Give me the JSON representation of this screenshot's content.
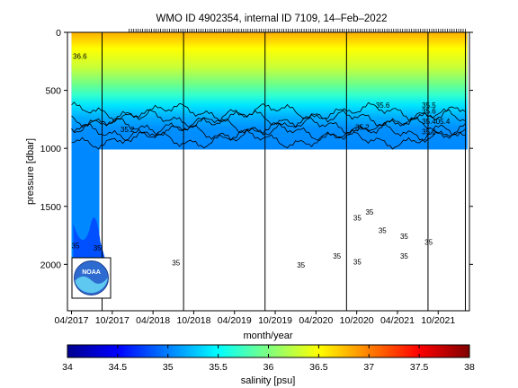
{
  "chart_data": {
    "type": "heatmap",
    "title": "WMO ID 4902354, internal ID 7109, 14–Feb–2022",
    "xlabel": "month/year",
    "ylabel": "pressure [dbar]",
    "x_tick_labels": [
      "04/2017",
      "10/2017",
      "04/2018",
      "10/2018",
      "04/2019",
      "10/2019",
      "04/2020",
      "10/2020",
      "04/2021",
      "10/2021"
    ],
    "x_ticks_months": [
      0,
      6,
      12,
      18,
      24,
      30,
      36,
      42,
      48,
      54
    ],
    "xlim_months": [
      -0.6,
      58.6
    ],
    "ylim": [
      2400,
      0
    ],
    "y_ticks": [
      0,
      500,
      1000,
      1500,
      2000
    ],
    "y_reversed": true,
    "colorbar": {
      "label": "salinity [psu]",
      "range": [
        34,
        38
      ],
      "ticks": [
        "34",
        "34.5",
        "35",
        "35.5",
        "36",
        "36.5",
        "37",
        "37.5",
        "38"
      ],
      "colormap": "jet"
    },
    "profile_max_depth_dbar": {
      "deep_early": {
        "from_month": 0,
        "to_month": 4.1,
        "depth": 2030
      },
      "shallow_after": 1010
    },
    "cycle_breaks_months": [
      4.5,
      16.5,
      28.5,
      40.5,
      52.5,
      58.0
    ],
    "isolines": [
      {
        "value": "35.6",
        "depth_dbar": 690
      },
      {
        "value": "35.5",
        "depth_dbar": 740
      },
      {
        "value": "35.4",
        "depth_dbar": 810
      },
      {
        "value": "35.3",
        "depth_dbar": 860
      },
      {
        "value": "35.2",
        "depth_dbar": 920
      }
    ],
    "contour_labels": [
      {
        "text": "36.6",
        "month": 0.2,
        "depth": 230
      },
      {
        "text": "35.2",
        "month": 7.2,
        "depth": 860
      },
      {
        "text": "35.6",
        "month": 44.8,
        "depth": 650
      },
      {
        "text": "35.2",
        "month": 41.8,
        "depth": 840
      },
      {
        "text": "35.5",
        "month": 51.6,
        "depth": 650
      },
      {
        "text": "35.6",
        "month": 51.6,
        "depth": 700
      },
      {
        "text": "35.405.4",
        "month": 51.6,
        "depth": 790
      },
      {
        "text": "35.2",
        "month": 51.6,
        "depth": 880
      },
      {
        "text": "35",
        "month": 0.0,
        "depth": 1860
      },
      {
        "text": "35",
        "month": 3.2,
        "depth": 1880
      },
      {
        "text": "35",
        "month": 14.8,
        "depth": 2010
      },
      {
        "text": "35",
        "month": 33.2,
        "depth": 2030
      },
      {
        "text": "35",
        "month": 38.5,
        "depth": 1950
      },
      {
        "text": "35",
        "month": 41.5,
        "depth": 2000
      },
      {
        "text": "35",
        "month": 41.5,
        "depth": 1620
      },
      {
        "text": "35",
        "month": 43.3,
        "depth": 1570
      },
      {
        "text": "35",
        "month": 45.2,
        "depth": 1730
      },
      {
        "text": "35",
        "month": 48.4,
        "depth": 1780
      },
      {
        "text": "35",
        "month": 48.4,
        "depth": 1950
      },
      {
        "text": "35",
        "month": 52.0,
        "depth": 1830
      }
    ],
    "logo_text": "NOAA",
    "grid": false
  }
}
